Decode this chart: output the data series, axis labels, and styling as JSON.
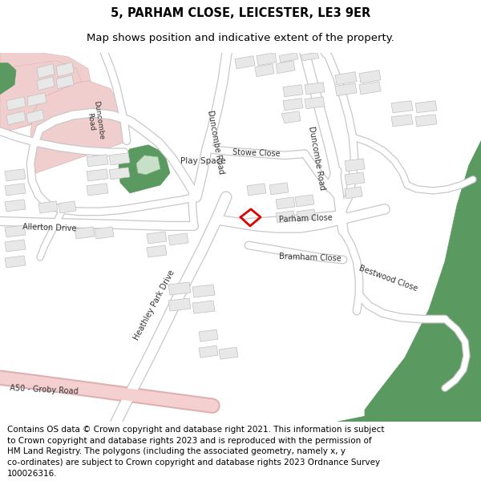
{
  "title": "5, PARHAM CLOSE, LEICESTER, LE3 9ER",
  "subtitle": "Map shows position and indicative extent of the property.",
  "footer_line1": "Contains OS data © Crown copyright and database right 2021. This information is subject",
  "footer_line2": "to Crown copyright and database rights 2023 and is reproduced with the permission of",
  "footer_line3": "HM Land Registry. The polygons (including the associated geometry, namely x, y",
  "footer_line4": "co-ordinates) are subject to Crown copyright and database rights 2023 Ordnance Survey",
  "footer_line5": "100026316.",
  "bg_color": "#ffffff",
  "map_bg": "#f2f2f2",
  "road_fill": "#ffffff",
  "road_edge": "#c8c8c8",
  "bldg_fill": "#e8e8e8",
  "bldg_edge": "#c0c0c0",
  "green_fill": "#5a9960",
  "green_edge": "#4a8950",
  "lt_green": "#c8dfc8",
  "pink_fill": "#f0cece",
  "pink_edge": "#d8aaaa",
  "a50_fill": "#f5d0d0",
  "a50_edge": "#e0b0b0",
  "prop_color": "#e00000",
  "title_fs": 10.5,
  "sub_fs": 9.5,
  "footer_fs": 7.5,
  "label_fs": 7.0
}
